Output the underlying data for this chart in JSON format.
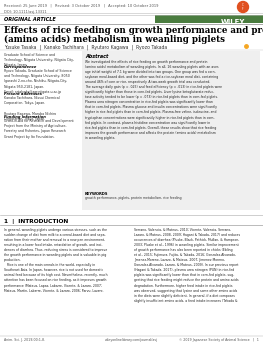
{
  "bg_color": "#ffffff",
  "received_text": "Received: 25 June 2019   |   Revised: 3 October 2019   |   Accepted: 10 October 2019",
  "doi_text": "DOI: 10.1111/asj.13311",
  "section_label": "ORIGINAL ARTICLE",
  "title_line1": "Effects of rice feeding on growth performance and protein",
  "title_line2": "(amino acids) metabolism in weanling piglets",
  "authors": "Yusuke Tasaka  |  Kanako Tachihara  |  Ryutaro Kagawa  |  Ryozo Takada",
  "affil_text": "Graduate School of Science and\nTechnology, Niigata University, Niigata City,\nNiigata, Japan",
  "corr_label": "Correspondence",
  "corr_text": "Ryozo Takada, Graduate School of Science\nand Technology, Niigata University, 8050\nIgarashi 2-no-cho, Nishiku, Niigata-City,\nNiigata 950-2181, Japan.\nEmail: rztakada@agr.niigata-u.ac.jp",
  "present_label": "Present addresses",
  "present_text": "Kanako Tachihara, Nissui Chemical\nCorporation, Tokyo, Japan.\n\nRyutaro Kagawa, Maruba Nichiro\nCorporation, Tokyo, Japan.",
  "funding_label": "Funding information",
  "funding_text": "Grant-in-Aid for Research and Development\nProject from the Ministry of Agriculture,\nForestry and Fisheries, Japan Research\nGrant Project by Ito Foundation.",
  "abstract_label": "Abstract",
  "abstract_bg": "#efefef",
  "abstract_text": "We investigated the effects of rice feeding on growth performance and protein\n(amino acids) metabolism of weanling piglets. In all, 16 weanling piglets with an aver-\nage initial weight of 7.1 kg were divided into two groups. One group was fed a corn-\nsoybean meal-based diet, and the other was fed a rice-soybean meal diet, containing\naround 46% of corn or rice, respectively. A two-week growth trial was conducted.\nThe average daily gain (p = .025) and feed efficiency (p = .013) in rice-fed piglets were\nsignificantly higher than those in corn-fed piglets. Liver lysine-ketoglutarate reduc-\ntase activity tended to be lower (p = .073) in rice-fed piglets than in corn-fed piglets.\nPlasma urea nitrogen concentration in rice-fed piglets was significantly lower than\nthat in corn-fed piglets. Plasma glucose and insulin concentrations were significantly\nhigher in rice-fed piglets than in corn-fed piglets. Plasma-free valine, isoleucine, and\ntryptophan concentrations were significantly higher in rice-fed piglets than in corn-\nfed piglets. In contrast, plasma histidine concentration was significantly lower in\nrice-fed piglets than in corn-fed piglets. Overall, these results show that rice feeding\nimproves the growth performance and affects the protein (amino acids) metabolism\nin weanling piglets.",
  "keywords_label": "KEYWORDS",
  "keywords_text": "growth performance, piglets, protein metabolism, rice feeding",
  "intro_title": "1  |  INTRODUCTION",
  "intro_col1": "In general, weanling piglets undergo various stresses, such as the\nsudden change of diet from milk to a cereal-based diet and sepa-\nration from their mother and removal to a new pen environment,\nresulting in a lower food intake, retardation of growth, and inci-\ndences of diarrhea. Thus, reducing stress is considered to improve\nthe growth performance in weanling piglets and is valuable in pig\nproduction.\n   Rice is one of the main cereals in the world, especially in\nSoutheast Asia. In Japan, however, rice is not used for domestic\nanimal feed because of its high cost. Nevertheless, recently, much\nattention has been focused on rice feeding, as it improves growth\nperformance (Mateus, Lapaz, Labarre, Vicente, & Lazaro, 2007;\nMateus, Martin, Labarre, Vicente, & Lazaro, 2006; Parvu, Lazaro,",
  "intro_col2": "Serrano, Valencia, & Mateus, 2010; Vicente, Valencia, Serrano,\nLazaro, & Mateus, 2008, 2009; Hagani & Takada, 2017) and reduces\noccurrences of diarrhea (Pluske, Black, Pethick, Mullan, & Hampson,\n2003; Pluske et al., 1996) in weanling piglets. Similar improvement\nof growth performance has also been reported in chicks (Ebling\net al., 2015; Fujimura, Fujita, & Takada, 2016; Gonzalez-Alvarado,\nJimenez-Moreno, Lazaro, & Mateus, 2007; Jimenez-Moreno,\nGonzalez-Alvarado, Lazaro, & Mateus, 2009). In our previous report\n(Hagani & Takada, 2017), plasma urea nitrogen (PUN) in rice-fed\npiglets was significantly lower than that in corn-fed piglets, sug-\ngesting that rice feeding might reduce the protein and amino acids\ndegradation. Furthermore, higher feed intake in rice-fed piglets\nwas observed, suggesting that lysine and some other amino acids\nin the diets were slightly deficient. In general, if a diet composes\nslightly insufficient amino acids, a feed intake increases (Takada &",
  "footer_left": "Anim. Sci. J. 2019;00:1-8.",
  "footer_mid": "wileyonlinelibrary.com/journal/asj",
  "footer_right": "© 2019 Japanese Society of Animal Science   |   1",
  "wiley_banner_color": "#4a7c3f",
  "wiley_text": "WILEY"
}
